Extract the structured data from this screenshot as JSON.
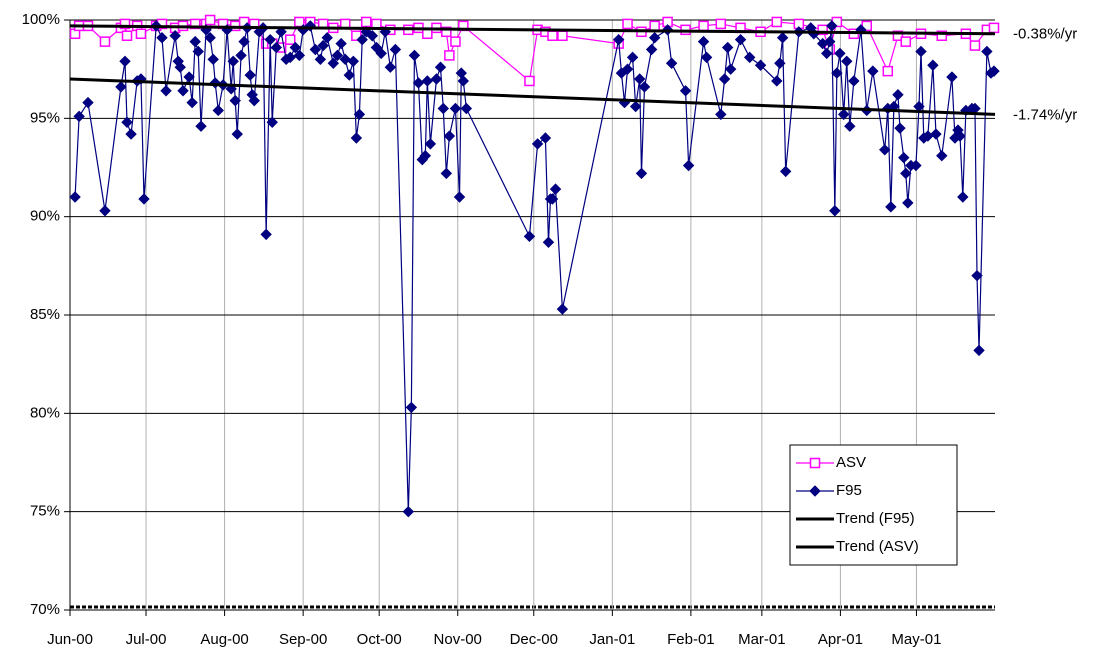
{
  "chart_data": {
    "type": "line",
    "xlim": [
      0,
      365
    ],
    "xticks": [
      {
        "value": 0,
        "label": "Jun-00"
      },
      {
        "value": 30,
        "label": "Jul-00"
      },
      {
        "value": 61,
        "label": "Aug-00"
      },
      {
        "value": 92,
        "label": "Sep-00"
      },
      {
        "value": 122,
        "label": "Oct-00"
      },
      {
        "value": 153,
        "label": "Nov-00"
      },
      {
        "value": 183,
        "label": "Dec-00"
      },
      {
        "value": 214,
        "label": "Jan-01"
      },
      {
        "value": 245,
        "label": "Feb-01"
      },
      {
        "value": 273,
        "label": "Mar-01"
      },
      {
        "value": 304,
        "label": "Apr-01"
      },
      {
        "value": 334,
        "label": "May-01"
      }
    ],
    "ylim": [
      70,
      100
    ],
    "yticks": [
      {
        "value": 70,
        "label": "70%"
      },
      {
        "value": 75,
        "label": "75%"
      },
      {
        "value": 80,
        "label": "80%"
      },
      {
        "value": 85,
        "label": "85%"
      },
      {
        "value": 90,
        "label": "90%"
      },
      {
        "value": 95,
        "label": "95%"
      },
      {
        "value": 100,
        "label": "100%"
      }
    ],
    "grid": true,
    "legend": "lower right",
    "annotations": [
      "-0.38%/yr",
      "-1.74%/yr"
    ],
    "series": [
      {
        "name": "ASV",
        "color": "#ff00ff",
        "marker": "square",
        "x": [
          2.0,
          3.6,
          7.1,
          13.8,
          20.1,
          21.7,
          22.5,
          26.5,
          28.0,
          34.0,
          36.3,
          41.5,
          44.6,
          49.4,
          53.7,
          55.3,
          60.4,
          65.2,
          68.7,
          72.7,
          77.4,
          79.8,
          83.3,
          86.9,
          90.5,
          94.8,
          99.9,
          103.9,
          108.6,
          113.0,
          116.9,
          120.9,
          126.4,
          133.5,
          137.5,
          141.0,
          144.6,
          148.5,
          149.7,
          152.1,
          155.2,
          181.3,
          184.5,
          187.6,
          190.4,
          194.3,
          216.5,
          220.0,
          225.5,
          230.7,
          235.8,
          242.9,
          250.0,
          256.8,
          264.6,
          272.5,
          278.9,
          287.6,
          297.0,
          299.8,
          302.6,
          309.3,
          314.4,
          322.7,
          326.7,
          329.8,
          335.8,
          344.0,
          353.5,
          357.1,
          361.8,
          364.6
        ],
        "values": [
          99.3,
          99.7,
          99.7,
          98.9,
          99.6,
          99.8,
          99.2,
          99.7,
          99.3,
          99.7,
          99.8,
          99.6,
          99.7,
          99.8,
          99.8,
          100.0,
          99.8,
          99.7,
          99.9,
          99.8,
          98.8,
          98.8,
          98.6,
          99.0,
          99.9,
          99.9,
          99.8,
          99.6,
          99.8,
          99.2,
          99.9,
          99.8,
          99.5,
          99.5,
          99.6,
          99.3,
          99.6,
          99.4,
          98.2,
          98.9,
          99.7,
          96.9,
          99.5,
          99.4,
          99.2,
          99.2,
          98.8,
          99.8,
          99.4,
          99.7,
          99.9,
          99.5,
          99.7,
          99.8,
          99.6,
          99.4,
          99.9,
          99.8,
          99.5,
          98.5,
          99.9,
          99.3,
          99.7,
          97.4,
          99.2,
          98.9,
          99.3,
          99.2,
          99.3,
          98.7,
          99.5,
          99.6
        ]
      },
      {
        "name": "F95",
        "color": "#000080",
        "marker": "diamond",
        "x": [
          2.0,
          3.6,
          7.1,
          13.8,
          20.1,
          21.7,
          22.5,
          24.1,
          26.5,
          28.0,
          29.2,
          34.0,
          36.3,
          37.9,
          41.5,
          42.7,
          43.5,
          44.6,
          47.0,
          48.2,
          49.4,
          50.6,
          51.7,
          53.7,
          55.3,
          56.5,
          57.3,
          58.5,
          60.4,
          62.0,
          63.6,
          64.4,
          65.2,
          66.0,
          67.5,
          68.7,
          69.9,
          71.1,
          71.9,
          72.7,
          74.7,
          76.2,
          77.4,
          79.0,
          79.8,
          81.4,
          83.3,
          85.3,
          86.9,
          88.9,
          90.5,
          92.0,
          94.8,
          96.8,
          98.8,
          99.9,
          101.5,
          103.9,
          105.5,
          107.0,
          108.6,
          110.2,
          111.8,
          113.0,
          114.2,
          115.3,
          116.9,
          119.3,
          120.9,
          122.8,
          124.4,
          126.4,
          128.4,
          133.5,
          134.7,
          135.9,
          137.5,
          139.0,
          140.2,
          141.0,
          142.2,
          144.6,
          146.2,
          147.3,
          148.5,
          149.7,
          152.1,
          153.7,
          154.4,
          155.2,
          156.4,
          181.3,
          184.5,
          187.6,
          188.8,
          189.6,
          190.4,
          191.6,
          194.3,
          216.5,
          217.6,
          218.8,
          220.0,
          222.0,
          223.2,
          224.8,
          225.5,
          226.7,
          229.5,
          230.7,
          235.8,
          237.4,
          242.9,
          244.1,
          250.0,
          251.2,
          256.8,
          258.3,
          259.5,
          260.7,
          264.6,
          268.2,
          272.5,
          278.9,
          280.1,
          281.2,
          282.4,
          287.6,
          292.3,
          293.5,
          297.0,
          298.6,
          299.8,
          300.6,
          301.8,
          302.6,
          303.8,
          305.3,
          306.5,
          307.7,
          309.3,
          312.1,
          314.4,
          316.8,
          321.5,
          322.7,
          323.9,
          325.1,
          326.7,
          327.5,
          329.0,
          329.8,
          330.6,
          331.8,
          333.8,
          335.0,
          335.8,
          336.9,
          338.5,
          340.5,
          341.7,
          344.0,
          348.0,
          349.2,
          350.4,
          351.2,
          352.3,
          353.5,
          355.9,
          357.1,
          357.9,
          358.7,
          361.8,
          363.4,
          364.6
        ],
        "values": [
          91.0,
          95.1,
          95.8,
          90.3,
          96.6,
          97.9,
          94.8,
          94.2,
          96.9,
          97.0,
          90.9,
          99.7,
          99.1,
          96.4,
          99.2,
          97.9,
          97.6,
          96.4,
          97.1,
          95.8,
          98.9,
          98.4,
          94.6,
          99.5,
          99.1,
          98.0,
          96.8,
          95.4,
          96.7,
          99.5,
          96.5,
          97.9,
          95.9,
          94.2,
          98.2,
          98.9,
          99.6,
          97.2,
          96.2,
          95.9,
          99.4,
          99.6,
          89.1,
          99.0,
          94.8,
          98.6,
          99.4,
          98.0,
          98.1,
          98.6,
          98.2,
          99.5,
          99.7,
          98.5,
          98.0,
          98.7,
          99.1,
          97.8,
          98.2,
          98.8,
          98.0,
          97.2,
          97.9,
          94.0,
          95.2,
          99.0,
          99.4,
          99.2,
          98.6,
          98.3,
          99.4,
          97.6,
          98.5,
          75.0,
          80.3,
          98.2,
          96.8,
          92.9,
          93.1,
          96.9,
          93.7,
          97.0,
          97.6,
          95.5,
          92.2,
          94.1,
          95.5,
          91.0,
          97.3,
          96.9,
          95.5,
          89.0,
          93.7,
          94.0,
          88.7,
          90.9,
          90.9,
          91.4,
          85.3,
          99.0,
          97.3,
          95.8,
          97.5,
          98.1,
          95.6,
          97.0,
          92.2,
          96.6,
          98.5,
          99.1,
          99.5,
          97.8,
          96.4,
          92.6,
          98.9,
          98.1,
          95.2,
          97.0,
          98.6,
          97.5,
          99.0,
          98.1,
          97.7,
          96.9,
          97.8,
          99.1,
          92.3,
          99.4,
          99.6,
          99.3,
          98.8,
          98.3,
          98.9,
          99.7,
          90.3,
          97.3,
          98.3,
          95.2,
          97.9,
          94.6,
          96.9,
          99.5,
          95.4,
          97.4,
          93.4,
          95.5,
          90.5,
          95.6,
          96.2,
          94.5,
          93.0,
          92.2,
          90.7,
          92.6,
          92.6,
          95.6,
          98.4,
          94.0,
          94.1,
          97.7,
          94.2,
          93.1,
          97.1,
          94.0,
          94.4,
          94.1,
          91.0,
          95.4,
          95.5,
          95.5,
          87.0,
          83.2,
          98.4,
          97.3,
          97.4
        ]
      },
      {
        "name": "Trend (F95)",
        "color": "#000000",
        "marker": "none",
        "x": [
          0,
          365
        ],
        "values": [
          97.0,
          95.2
        ]
      },
      {
        "name": "Trend (ASV)",
        "color": "#000000",
        "marker": "none",
        "x": [
          0,
          365
        ],
        "values": [
          99.7,
          99.3
        ]
      }
    ]
  }
}
